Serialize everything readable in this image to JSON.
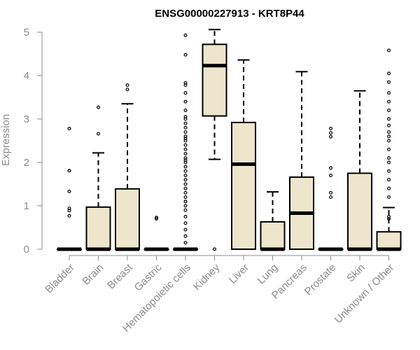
{
  "chart_data": {
    "type": "boxplot",
    "title": "ENSG00000227913 - KRT8P44",
    "xlabel": "",
    "ylabel": "Expression",
    "ylim": [
      0,
      5
    ],
    "yticks": [
      0,
      1,
      2,
      3,
      4,
      5
    ],
    "grid": false,
    "colors": {
      "box_fill": "#ede6cd",
      "box_stroke": "#000000",
      "axis": "#8c8c8c",
      "title": "#000000"
    },
    "categories": [
      "Bladder",
      "Brain",
      "Breast",
      "Gastric",
      "Hematopoietic cells",
      "Kidney",
      "Liver",
      "Lung",
      "Pancreas",
      "Prostate",
      "Skin",
      "Unknown / Other"
    ],
    "boxes": [
      {
        "category": "Bladder",
        "whisker_low": 0,
        "q1": 0,
        "median": 0,
        "q3": 0,
        "whisker_high": 0,
        "outliers": [
          0.77,
          0.89,
          0.94,
          1.33,
          1.81,
          2.78
        ]
      },
      {
        "category": "Brain",
        "whisker_low": 0,
        "q1": 0,
        "median": 0,
        "q3": 0.97,
        "whisker_high": 2.22,
        "outliers": [
          2.66,
          3.27
        ]
      },
      {
        "category": "Breast",
        "whisker_low": 0,
        "q1": 0,
        "median": 0,
        "q3": 1.39,
        "whisker_high": 3.35,
        "outliers": [
          3.68,
          3.78
        ]
      },
      {
        "category": "Gastric",
        "whisker_low": 0,
        "q1": 0,
        "median": 0,
        "q3": 0,
        "whisker_high": 0,
        "outliers": [
          0.7,
          0.73
        ]
      },
      {
        "category": "Hematopoietic cells",
        "whisker_low": 0,
        "q1": 0,
        "median": 0,
        "q3": 0,
        "whisker_high": 0,
        "outliers": [
          0.15,
          0.3,
          0.45,
          0.6,
          0.75,
          0.9,
          1.0,
          1.1,
          1.2,
          1.3,
          1.4,
          1.5,
          1.6,
          1.7,
          1.8,
          1.9,
          2.0,
          2.05,
          2.1,
          2.2,
          2.3,
          2.4,
          2.5,
          2.55,
          2.6,
          2.7,
          2.8,
          2.9,
          3.0,
          3.05,
          3.2,
          3.4,
          3.6,
          3.78,
          3.83,
          4.48,
          4.93
        ]
      },
      {
        "category": "Kidney",
        "whisker_low": 2.07,
        "q1": 3.07,
        "median": 4.23,
        "q3": 4.72,
        "whisker_high": 5.06,
        "outliers": [
          0
        ]
      },
      {
        "category": "Liver",
        "whisker_low": 0,
        "q1": 0,
        "median": 1.96,
        "q3": 2.92,
        "whisker_high": 4.36,
        "outliers": []
      },
      {
        "category": "Lung",
        "whisker_low": 0,
        "q1": 0,
        "median": 0,
        "q3": 0.63,
        "whisker_high": 1.32,
        "outliers": []
      },
      {
        "category": "Pancreas",
        "whisker_low": 0,
        "q1": 0,
        "median": 0.83,
        "q3": 1.66,
        "whisker_high": 4.09,
        "outliers": []
      },
      {
        "category": "Prostate",
        "whisker_low": 0,
        "q1": 0,
        "median": 0,
        "q3": 0,
        "whisker_high": 0,
        "outliers": [
          1.2,
          1.3,
          1.7,
          1.87,
          2.59,
          2.68,
          2.78
        ]
      },
      {
        "category": "Skin",
        "whisker_low": 0,
        "q1": 0,
        "median": 0,
        "q3": 1.75,
        "whisker_high": 3.65,
        "outliers": []
      },
      {
        "category": "Unknown / Other",
        "whisker_low": 0,
        "q1": 0,
        "median": 0,
        "q3": 0.4,
        "whisker_high": 0.96,
        "outliers": [
          0.7,
          0.75,
          1.2,
          1.4,
          1.6,
          1.8,
          2.0,
          2.1,
          2.3,
          2.5,
          2.6,
          2.7,
          2.85,
          3.0,
          3.2,
          3.4,
          3.6,
          3.85,
          4.05,
          4.58
        ]
      }
    ]
  }
}
